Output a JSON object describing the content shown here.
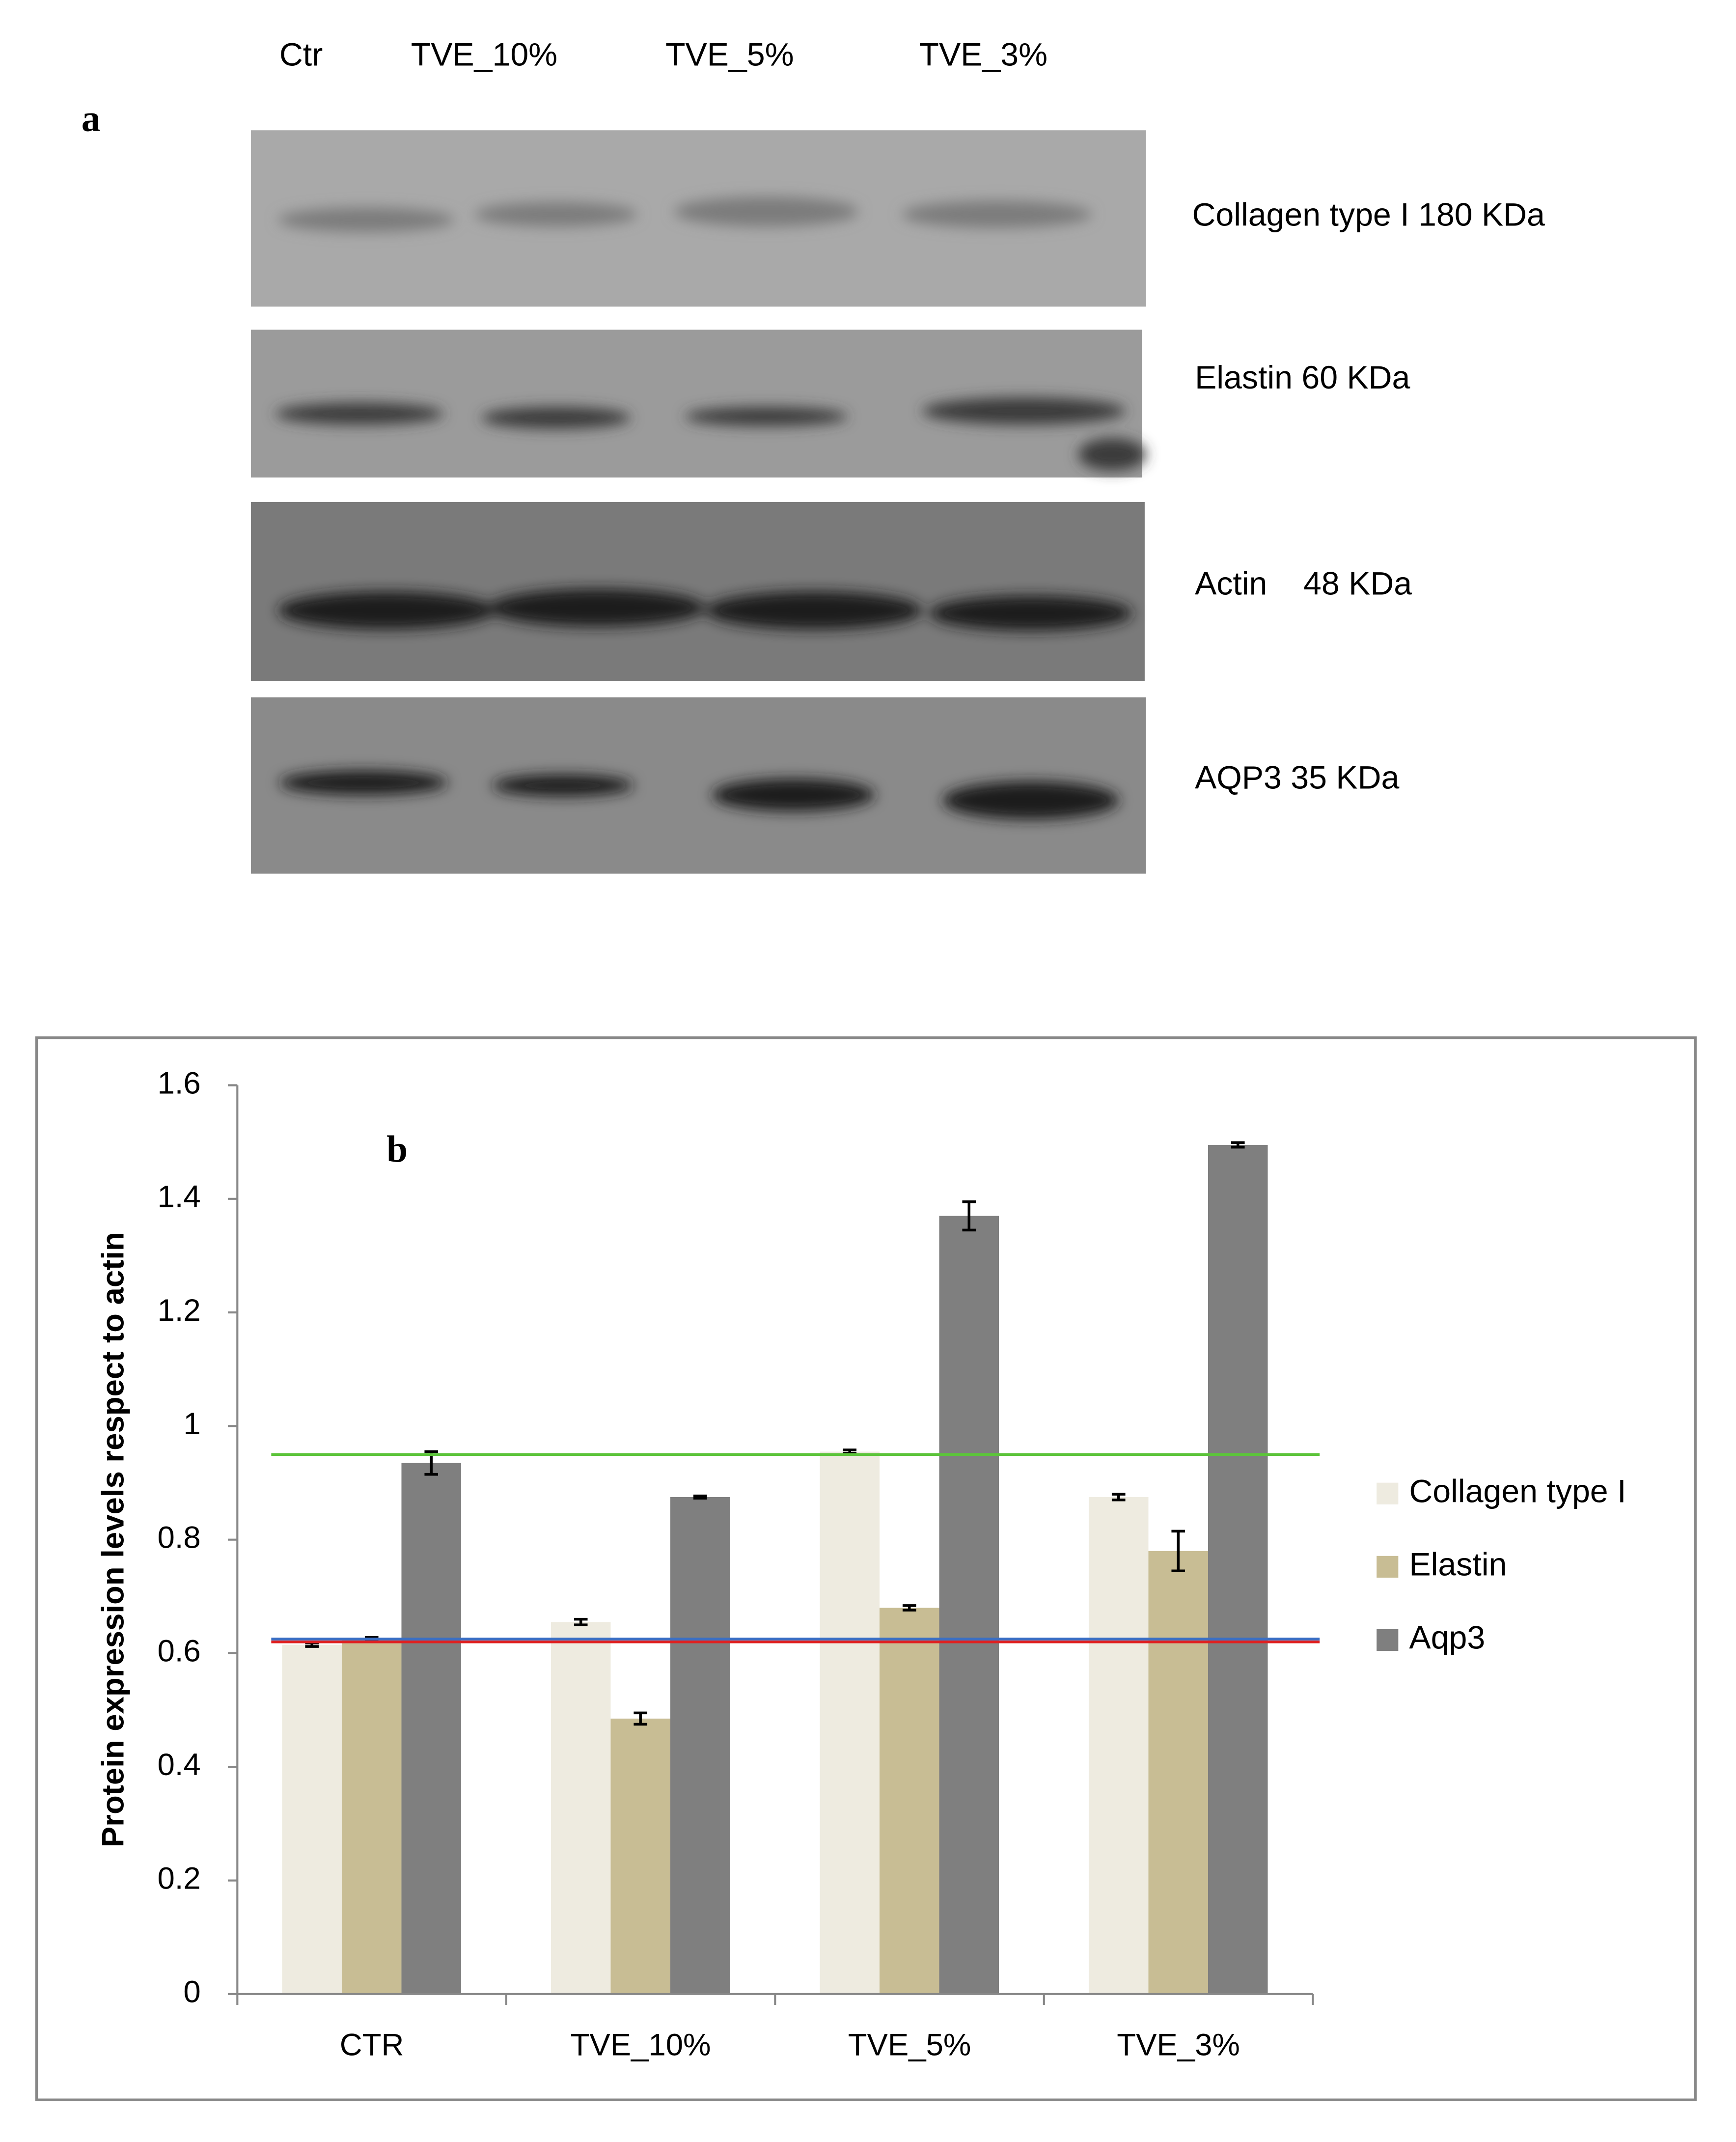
{
  "blot": {
    "panel_label": "a",
    "lanes": [
      "Ctr",
      "TVE_10%",
      "TVE_5%",
      "TVE_3%"
    ],
    "bands": [
      "Collagen type I 180 KDa",
      "Elastin 60 KDa",
      "Actin    48 KDa",
      "AQP3 35 KDa"
    ]
  },
  "chart_data": {
    "type": "bar",
    "panel_label": "b",
    "ylabel": "Protein expression levels respect to actin",
    "categories": [
      "CTR",
      "TVE_10%",
      "TVE_5%",
      "TVE_3%"
    ],
    "series": [
      {
        "name": "Collagen type I",
        "color": "#eeebe0",
        "values": [
          0.615,
          0.655,
          0.955,
          0.875
        ],
        "errors": [
          0.003,
          0.005,
          0.003,
          0.005
        ]
      },
      {
        "name": "Elastin",
        "color": "#c8bd94",
        "values": [
          0.625,
          0.485,
          0.68,
          0.78
        ],
        "errors": [
          0.003,
          0.01,
          0.004,
          0.035
        ]
      },
      {
        "name": "Aqp3",
        "color": "#7f7f7f",
        "values": [
          0.935,
          0.875,
          1.37,
          1.495
        ],
        "errors": [
          0.02,
          0.002,
          0.025,
          0.004
        ]
      }
    ],
    "reference_lines": [
      {
        "value": 0.95,
        "color": "#5cc43a"
      },
      {
        "value": 0.625,
        "color": "#3a6fc4"
      },
      {
        "value": 0.62,
        "color": "#e02020"
      }
    ],
    "ylim": [
      0,
      1.6
    ],
    "yticks": [
      0,
      0.2,
      0.4,
      0.6,
      0.8,
      1,
      1.2,
      1.4,
      1.6
    ],
    "grid": false,
    "legend": "right"
  }
}
